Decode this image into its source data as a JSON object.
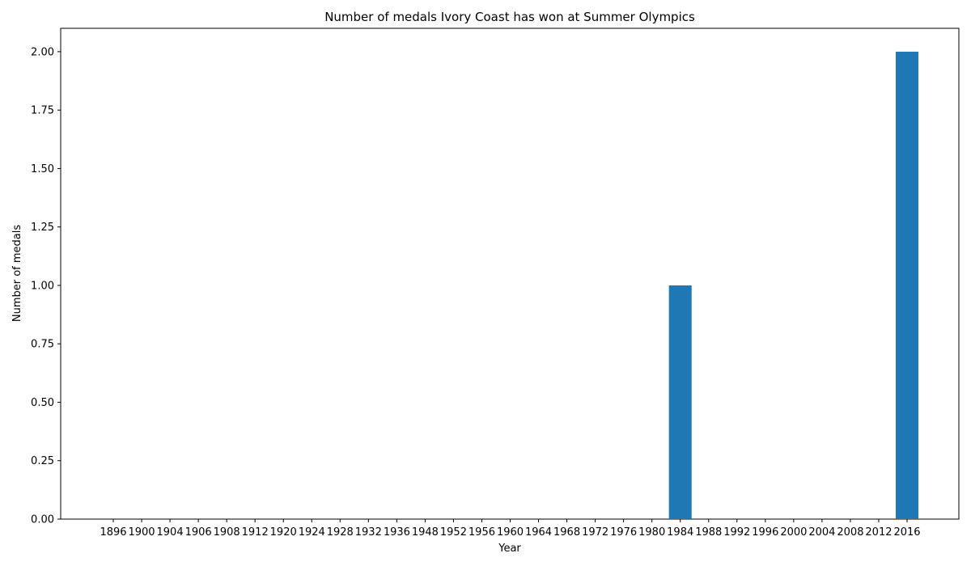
{
  "chart_data": {
    "type": "bar",
    "title": "Number of medals Ivory Coast has won at Summer Olympics",
    "xlabel": "Year",
    "ylabel": "Number of medals",
    "categories": [
      "1896",
      "1900",
      "1904",
      "1906",
      "1908",
      "1912",
      "1920",
      "1924",
      "1928",
      "1932",
      "1936",
      "1948",
      "1952",
      "1956",
      "1960",
      "1964",
      "1968",
      "1972",
      "1976",
      "1980",
      "1984",
      "1988",
      "1992",
      "1996",
      "2000",
      "2004",
      "2008",
      "2012",
      "2016"
    ],
    "values": [
      0,
      0,
      0,
      0,
      0,
      0,
      0,
      0,
      0,
      0,
      0,
      0,
      0,
      0,
      0,
      0,
      0,
      0,
      0,
      0,
      1,
      0,
      0,
      0,
      0,
      0,
      0,
      0,
      2
    ],
    "ylim": [
      0,
      2.1
    ],
    "yticks": [
      "0.00",
      "0.25",
      "0.50",
      "0.75",
      "1.00",
      "1.25",
      "1.50",
      "1.75",
      "2.00"
    ],
    "bar_color": "#1f77b4",
    "grid": false,
    "legend": "none"
  }
}
